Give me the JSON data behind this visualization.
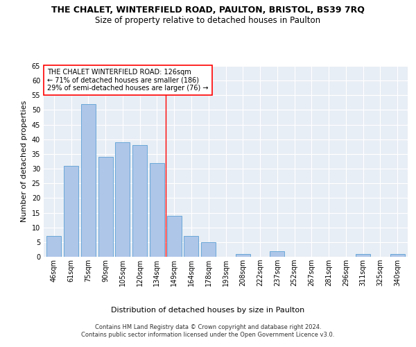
{
  "title": "THE CHALET, WINTERFIELD ROAD, PAULTON, BRISTOL, BS39 7RQ",
  "subtitle": "Size of property relative to detached houses in Paulton",
  "xlabel": "Distribution of detached houses by size in Paulton",
  "ylabel": "Number of detached properties",
  "footer": "Contains HM Land Registry data © Crown copyright and database right 2024.\nContains public sector information licensed under the Open Government Licence v3.0.",
  "categories": [
    "46sqm",
    "61sqm",
    "75sqm",
    "90sqm",
    "105sqm",
    "120sqm",
    "134sqm",
    "149sqm",
    "164sqm",
    "178sqm",
    "193sqm",
    "208sqm",
    "222sqm",
    "237sqm",
    "252sqm",
    "267sqm",
    "281sqm",
    "296sqm",
    "311sqm",
    "325sqm",
    "340sqm"
  ],
  "values": [
    7,
    31,
    52,
    34,
    39,
    38,
    32,
    14,
    7,
    5,
    0,
    1,
    0,
    2,
    0,
    0,
    0,
    0,
    1,
    0,
    1
  ],
  "bar_color": "#aec6e8",
  "bar_edge_color": "#5a9fd4",
  "reference_line_x": 6.5,
  "annotation_text": "THE CHALET WINTERFIELD ROAD: 126sqm\n← 71% of detached houses are smaller (186)\n29% of semi-detached houses are larger (76) →",
  "ylim": [
    0,
    65
  ],
  "yticks": [
    0,
    5,
    10,
    15,
    20,
    25,
    30,
    35,
    40,
    45,
    50,
    55,
    60,
    65
  ],
  "bg_color": "#e8eef5",
  "grid_color": "#ffffff",
  "title_fontsize": 9,
  "subtitle_fontsize": 8.5,
  "ylabel_fontsize": 8,
  "xlabel_fontsize": 8,
  "tick_fontsize": 7,
  "annotation_fontsize": 7,
  "footer_fontsize": 6
}
